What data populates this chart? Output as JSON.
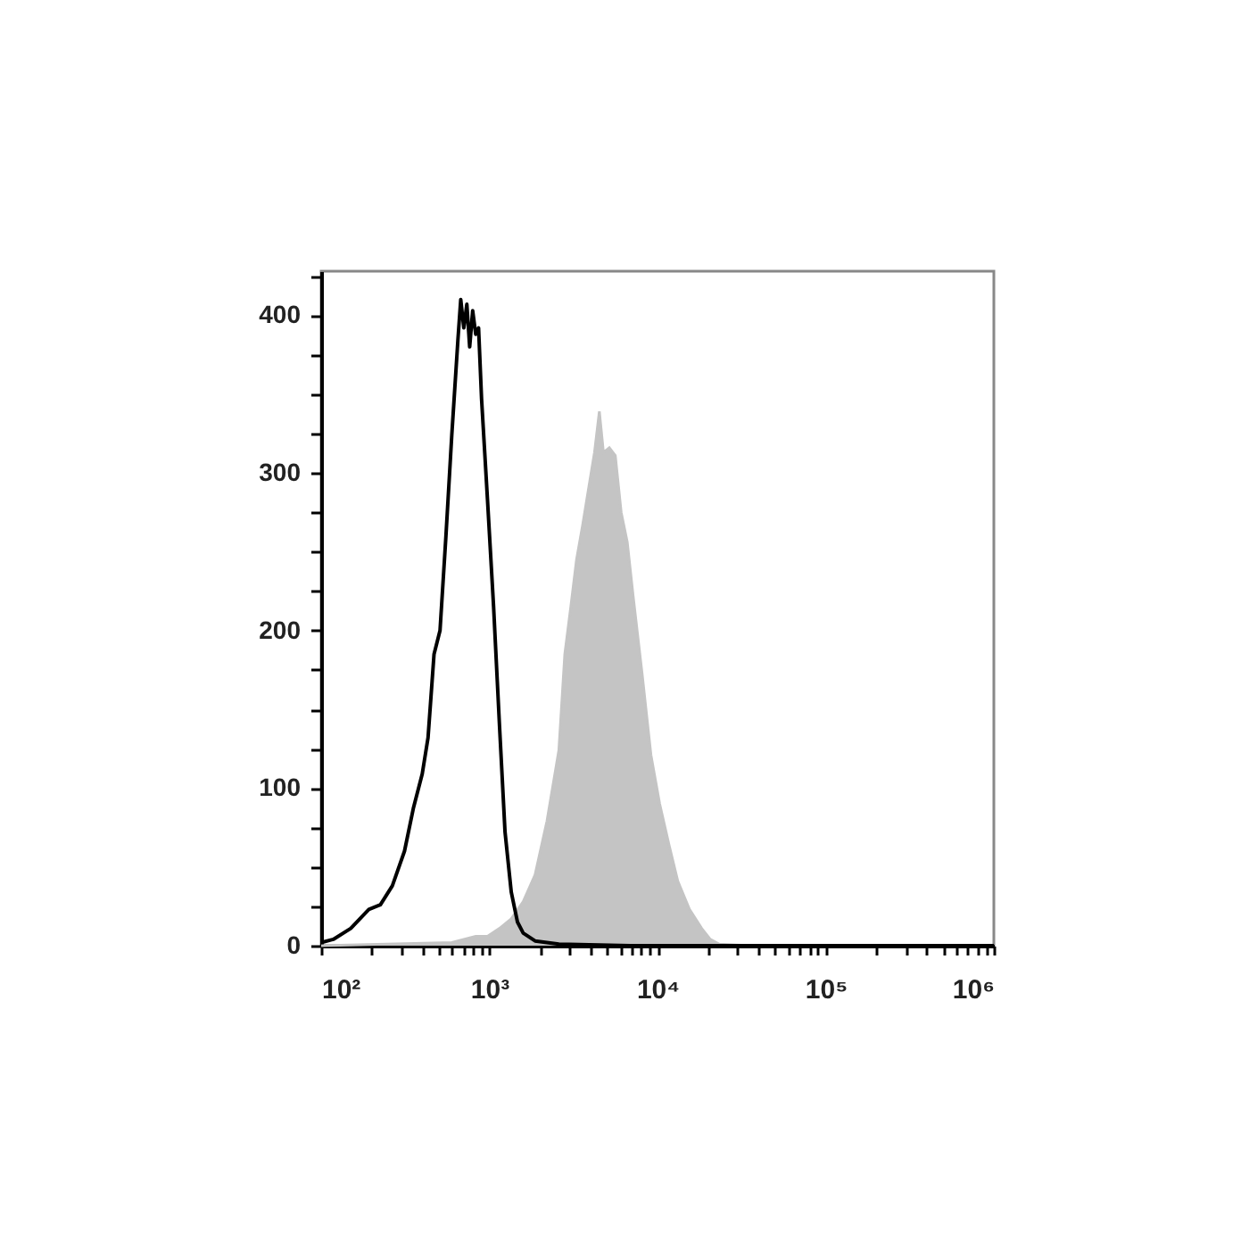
{
  "chart_data": {
    "type": "line",
    "log": "x",
    "grid": false,
    "xlim": [
      100,
      1000000
    ],
    "ylim": [
      0,
      428
    ],
    "xticks": [
      {
        "value": 100,
        "label": "10²"
      },
      {
        "value": 200,
        "label": null
      },
      {
        "value": 300,
        "label": null
      },
      {
        "value": 400,
        "label": null
      },
      {
        "value": 500,
        "label": null
      },
      {
        "value": 600,
        "label": null
      },
      {
        "value": 700,
        "label": null
      },
      {
        "value": 800,
        "label": null
      },
      {
        "value": 900,
        "label": null
      },
      {
        "value": 1000,
        "label": "10³"
      },
      {
        "value": 2000,
        "label": null
      },
      {
        "value": 3000,
        "label": null
      },
      {
        "value": 4000,
        "label": null
      },
      {
        "value": 5000,
        "label": null
      },
      {
        "value": 6000,
        "label": null
      },
      {
        "value": 7000,
        "label": null
      },
      {
        "value": 8000,
        "label": null
      },
      {
        "value": 9000,
        "label": null
      },
      {
        "value": 10000,
        "label": "10⁴"
      },
      {
        "value": 20000,
        "label": null
      },
      {
        "value": 30000,
        "label": null
      },
      {
        "value": 40000,
        "label": null
      },
      {
        "value": 50000,
        "label": null
      },
      {
        "value": 60000,
        "label": null
      },
      {
        "value": 70000,
        "label": null
      },
      {
        "value": 80000,
        "label": null
      },
      {
        "value": 90000,
        "label": null
      },
      {
        "value": 100000,
        "label": "10⁵"
      },
      {
        "value": 200000,
        "label": null
      },
      {
        "value": 300000,
        "label": null
      },
      {
        "value": 400000,
        "label": null
      },
      {
        "value": 500000,
        "label": null
      },
      {
        "value": 600000,
        "label": null
      },
      {
        "value": 700000,
        "label": null
      },
      {
        "value": 800000,
        "label": null
      },
      {
        "value": 900000,
        "label": null
      },
      {
        "value": 1000000,
        "label": "10⁶"
      }
    ],
    "yticks": [
      0,
      {
        "value": 25,
        "label": null
      },
      {
        "value": 50,
        "label": null
      },
      {
        "value": 75,
        "label": null
      },
      100,
      {
        "value": 125,
        "label": null
      },
      {
        "value": 150,
        "label": null
      },
      {
        "value": 175,
        "label": null
      },
      200,
      {
        "value": 225,
        "label": null
      },
      {
        "value": 250,
        "label": null
      },
      {
        "value": 275,
        "label": null
      },
      300,
      {
        "value": 325,
        "label": null
      },
      {
        "value": 350,
        "label": null
      },
      {
        "value": 375,
        "label": null
      },
      400,
      {
        "value": 425,
        "label": null
      }
    ],
    "series": [
      {
        "type": "area",
        "color": "#c4c4c4",
        "x": [
          100,
          598,
          830,
          975,
          1150,
          1350,
          1590,
          1870,
          2200,
          2590,
          2810,
          3050,
          3300,
          3590,
          3890,
          4220,
          4510,
          4770,
          5170,
          5610,
          6080,
          6610,
          7160,
          8090,
          9140,
          10300,
          11700,
          13200,
          15500,
          18300,
          20600,
          23300,
          35000,
          1000000
        ],
        "values": [
          0,
          2,
          6,
          6,
          11,
          17,
          28,
          45,
          79,
          124,
          185,
          215,
          245,
          267,
          290,
          313,
          339,
          313,
          316,
          311,
          275,
          256,
          222,
          173,
          121,
          90,
          64,
          41,
          23,
          11,
          4,
          1,
          0,
          0
        ]
      },
      {
        "color": "#000000",
        "x": [
          100,
          118,
          150,
          192,
          225,
          265,
          313,
          353,
          399,
          432,
          469,
          509,
          552,
          598,
          650,
          676,
          705,
          735,
          764,
          796,
          830,
          863,
          899,
          975,
          1060,
          1150,
          1240,
          1350,
          1470,
          1590,
          1870,
          2590,
          6870,
          79100,
          1000000
        ],
        "values": [
          2,
          4,
          11,
          23,
          26,
          38,
          60,
          87,
          109,
          132,
          185,
          200,
          260,
          324,
          384,
          410,
          392,
          407,
          380,
          403,
          388,
          392,
          347,
          283,
          215,
          139,
          72,
          34,
          15,
          8,
          3,
          1,
          0,
          0,
          0
        ]
      }
    ]
  }
}
